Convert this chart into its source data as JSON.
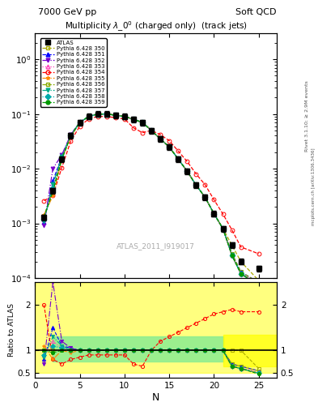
{
  "title_top_left": "7000 GeV pp",
  "title_top_right": "Soft QCD",
  "main_title": "Multiplicity $\\lambda\\_0^0$ (charged only)  (track jets)",
  "watermark": "ATLAS_2011_I919017",
  "xlabel": "N",
  "ylabel_ratio": "Ratio to ATLAS",
  "xlim": [
    0,
    27
  ],
  "ylim_main": [
    0.0001,
    3
  ],
  "ylim_ratio": [
    0.4,
    2.5
  ],
  "atlas_N": [
    1,
    2,
    3,
    4,
    5,
    6,
    7,
    8,
    9,
    10,
    11,
    12,
    13,
    14,
    15,
    16,
    17,
    18,
    19,
    20,
    21,
    22,
    23,
    25
  ],
  "atlas_vals": [
    0.0013,
    0.004,
    0.015,
    0.04,
    0.07,
    0.09,
    0.1,
    0.1,
    0.095,
    0.09,
    0.08,
    0.07,
    0.05,
    0.035,
    0.025,
    0.015,
    0.009,
    0.005,
    0.003,
    0.0015,
    0.0008,
    0.0004,
    0.0002,
    0.00015
  ],
  "series": [
    {
      "label": "Pythia 6.428 350",
      "color": "#aaaa00",
      "linestyle": "--",
      "marker": "s",
      "fillstyle": "none"
    },
    {
      "label": "Pythia 6.428 351",
      "color": "#0000ff",
      "linestyle": "--",
      "marker": "^",
      "fillstyle": "full"
    },
    {
      "label": "Pythia 6.428 352",
      "color": "#7700cc",
      "linestyle": "-.",
      "marker": "v",
      "fillstyle": "full"
    },
    {
      "label": "Pythia 6.428 353",
      "color": "#ff44bb",
      "linestyle": ":",
      "marker": "^",
      "fillstyle": "none"
    },
    {
      "label": "Pythia 6.428 354",
      "color": "#ff0000",
      "linestyle": "--",
      "marker": "o",
      "fillstyle": "none"
    },
    {
      "label": "Pythia 6.428 355",
      "color": "#ff8800",
      "linestyle": "-.",
      "marker": "*",
      "fillstyle": "full"
    },
    {
      "label": "Pythia 6.428 356",
      "color": "#88aa00",
      "linestyle": "--",
      "marker": "s",
      "fillstyle": "none"
    },
    {
      "label": "Pythia 6.428 357",
      "color": "#00aa88",
      "linestyle": "-.",
      "marker": "v",
      "fillstyle": "full"
    },
    {
      "label": "Pythia 6.428 358",
      "color": "#00aaaa",
      "linestyle": ":",
      "marker": "D",
      "fillstyle": "full"
    },
    {
      "label": "Pythia 6.428 359",
      "color": "#009900",
      "linestyle": "--",
      "marker": "o",
      "fillstyle": "full"
    }
  ],
  "mc_scales": [
    [
      1.0,
      1.0,
      1.0,
      1.0,
      1.0,
      1.0,
      1.0,
      1.0,
      1.0,
      1.0,
      1.0,
      1.0,
      1.0,
      1.0,
      1.0,
      1.0,
      1.0,
      1.0,
      1.0,
      1.0,
      1.0,
      1.0,
      1.0,
      0.6
    ],
    [
      0.8,
      1.5,
      1.1,
      1.05,
      1.0,
      1.0,
      1.0,
      1.0,
      1.0,
      1.0,
      1.0,
      1.0,
      1.0,
      1.0,
      1.0,
      1.0,
      1.0,
      1.0,
      1.0,
      1.0,
      1.0,
      0.7,
      0.65,
      0.55
    ],
    [
      0.7,
      2.5,
      1.2,
      1.05,
      1.0,
      1.0,
      1.0,
      1.0,
      1.0,
      1.0,
      1.0,
      1.0,
      1.0,
      1.0,
      1.0,
      1.0,
      1.0,
      1.0,
      1.0,
      1.0,
      1.0,
      0.65,
      0.6,
      0.5
    ],
    [
      0.9,
      1.2,
      1.05,
      1.0,
      1.0,
      1.0,
      1.0,
      1.0,
      1.0,
      1.0,
      1.0,
      1.0,
      1.0,
      1.0,
      1.0,
      1.0,
      1.0,
      1.0,
      1.0,
      1.0,
      1.0,
      0.65,
      0.6,
      0.55
    ],
    [
      2.0,
      0.8,
      0.7,
      0.8,
      0.85,
      0.9,
      0.9,
      0.9,
      0.9,
      0.9,
      0.7,
      0.65,
      1.0,
      1.2,
      1.3,
      1.4,
      1.5,
      1.6,
      1.7,
      1.8,
      1.85,
      1.9,
      1.85,
      1.85
    ],
    [
      1.1,
      0.8,
      1.0,
      0.95,
      1.0,
      1.0,
      1.0,
      1.0,
      1.0,
      1.0,
      1.0,
      1.0,
      1.0,
      1.0,
      1.0,
      1.0,
      1.0,
      1.0,
      1.0,
      1.0,
      1.0,
      0.65,
      0.6,
      0.5
    ],
    [
      1.0,
      1.0,
      1.0,
      1.0,
      1.0,
      1.0,
      1.0,
      1.0,
      1.0,
      1.0,
      1.0,
      1.0,
      1.0,
      1.0,
      1.0,
      1.0,
      1.0,
      1.0,
      1.0,
      1.0,
      1.0,
      0.7,
      0.65,
      0.55
    ],
    [
      0.85,
      1.3,
      1.1,
      1.0,
      1.0,
      1.0,
      1.0,
      1.0,
      1.0,
      1.0,
      1.0,
      1.0,
      1.0,
      1.0,
      1.0,
      1.0,
      1.0,
      1.0,
      1.0,
      1.0,
      1.0,
      0.65,
      0.6,
      0.5
    ],
    [
      0.9,
      1.1,
      1.05,
      1.0,
      1.0,
      1.0,
      1.0,
      1.0,
      1.0,
      1.0,
      1.0,
      1.0,
      1.0,
      1.0,
      1.0,
      1.0,
      1.0,
      1.0,
      1.0,
      1.0,
      1.0,
      0.65,
      0.6,
      0.5
    ],
    [
      1.0,
      0.95,
      1.0,
      1.0,
      1.0,
      1.0,
      1.0,
      1.0,
      1.0,
      1.0,
      1.0,
      1.0,
      1.0,
      1.0,
      1.0,
      1.0,
      1.0,
      1.0,
      1.0,
      1.0,
      1.0,
      0.65,
      0.6,
      0.48
    ]
  ]
}
